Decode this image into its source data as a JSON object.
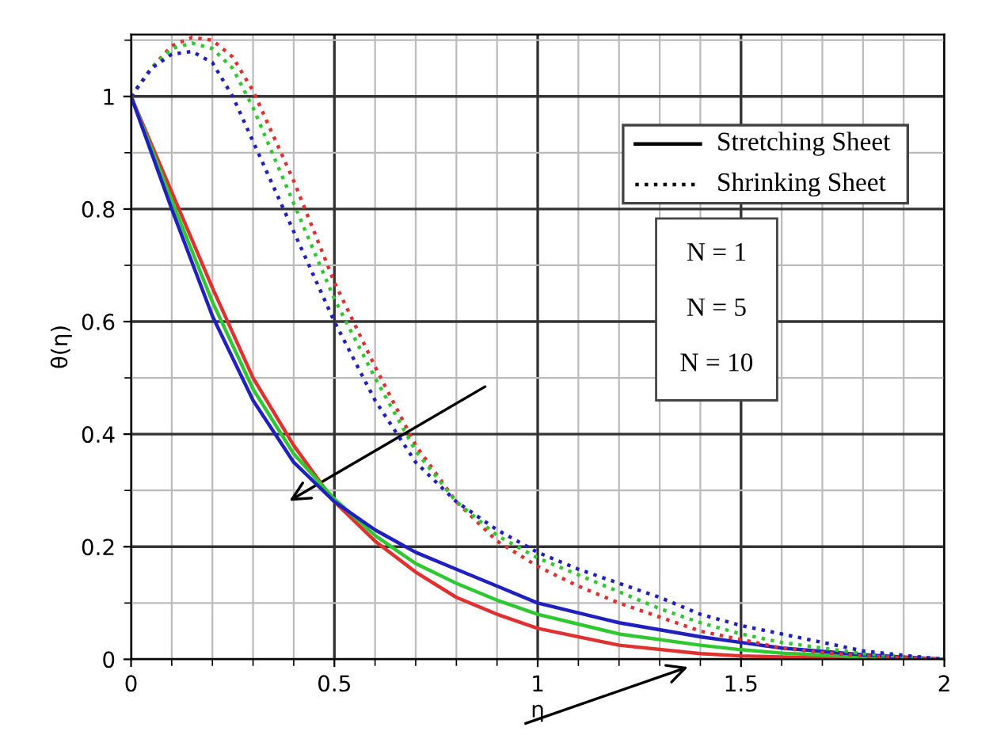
{
  "chart_data": {
    "type": "line",
    "xlabel": "η",
    "ylabel": "θ(η)",
    "xlim": [
      0,
      2
    ],
    "ylim": [
      0,
      1.11
    ],
    "xticks": [
      0,
      0.5,
      1,
      1.5,
      2
    ],
    "yticks": [
      0,
      0.2,
      0.4,
      0.6,
      0.8,
      1
    ],
    "grid": true,
    "marker": "none",
    "annotations": [
      "Stretching Sheet",
      "Shrinking Sheet",
      "N = 1",
      "N = 5",
      "N = 10"
    ],
    "series": [
      {
        "color": "#e03030",
        "line_style": "solid",
        "x": [
          0,
          0.1,
          0.2,
          0.3,
          0.4,
          0.5,
          0.6,
          0.7,
          0.8,
          0.9,
          1.0,
          1.2,
          1.4,
          1.5,
          1.6,
          1.8,
          2
        ],
        "values": [
          1,
          0.83,
          0.66,
          0.5,
          0.38,
          0.28,
          0.21,
          0.155,
          0.11,
          0.08,
          0.055,
          0.025,
          0.01,
          0.006,
          0.004,
          0.001,
          0
        ]
      },
      {
        "color": "#30c830",
        "line_style": "solid",
        "x": [
          0,
          0.1,
          0.2,
          0.3,
          0.4,
          0.5,
          0.6,
          0.7,
          0.8,
          0.9,
          1.0,
          1.2,
          1.4,
          1.5,
          1.6,
          1.8,
          2
        ],
        "values": [
          1,
          0.815,
          0.635,
          0.48,
          0.365,
          0.285,
          0.22,
          0.17,
          0.135,
          0.105,
          0.08,
          0.045,
          0.025,
          0.017,
          0.011,
          0.004,
          0
        ]
      },
      {
        "color": "#2020c0",
        "line_style": "solid",
        "x": [
          0,
          0.1,
          0.2,
          0.3,
          0.4,
          0.5,
          0.6,
          0.7,
          0.8,
          0.9,
          1.0,
          1.2,
          1.4,
          1.5,
          1.6,
          1.8,
          2
        ],
        "values": [
          1,
          0.8,
          0.61,
          0.46,
          0.35,
          0.28,
          0.23,
          0.19,
          0.16,
          0.13,
          0.1,
          0.065,
          0.04,
          0.03,
          0.02,
          0.008,
          0
        ]
      },
      {
        "color": "#e03030",
        "line_style": "dotted",
        "x": [
          0,
          0.05,
          0.1,
          0.15,
          0.2,
          0.25,
          0.3,
          0.4,
          0.5,
          0.6,
          0.7,
          0.8,
          0.9,
          1.0,
          1.1,
          1.2,
          1.3,
          1.4,
          1.5,
          1.6,
          1.7,
          1.8,
          1.9,
          2
        ],
        "values": [
          1,
          1.05,
          1.09,
          1.105,
          1.1,
          1.07,
          1.01,
          0.85,
          0.67,
          0.52,
          0.38,
          0.28,
          0.21,
          0.165,
          0.13,
          0.1,
          0.075,
          0.05,
          0.035,
          0.02,
          0.012,
          0.006,
          0.003,
          0
        ]
      },
      {
        "color": "#30c830",
        "line_style": "dotted",
        "x": [
          0,
          0.05,
          0.1,
          0.15,
          0.2,
          0.25,
          0.3,
          0.4,
          0.5,
          0.6,
          0.7,
          0.8,
          0.9,
          1.0,
          1.1,
          1.2,
          1.3,
          1.4,
          1.5,
          1.6,
          1.7,
          1.8,
          1.9,
          2
        ],
        "values": [
          1,
          1.05,
          1.085,
          1.095,
          1.085,
          1.05,
          0.98,
          0.81,
          0.64,
          0.5,
          0.37,
          0.28,
          0.22,
          0.18,
          0.15,
          0.12,
          0.09,
          0.065,
          0.045,
          0.03,
          0.02,
          0.01,
          0.005,
          0
        ]
      },
      {
        "color": "#2020c0",
        "line_style": "dotted",
        "x": [
          0,
          0.05,
          0.1,
          0.15,
          0.2,
          0.25,
          0.3,
          0.4,
          0.5,
          0.6,
          0.7,
          0.8,
          0.9,
          1.0,
          1.1,
          1.2,
          1.3,
          1.4,
          1.5,
          1.6,
          1.7,
          1.8,
          1.9,
          2
        ],
        "values": [
          1,
          1.05,
          1.075,
          1.08,
          1.06,
          1.0,
          0.92,
          0.76,
          0.6,
          0.46,
          0.35,
          0.28,
          0.23,
          0.19,
          0.16,
          0.135,
          0.11,
          0.08,
          0.06,
          0.045,
          0.03,
          0.015,
          0.007,
          0
        ]
      }
    ]
  }
}
